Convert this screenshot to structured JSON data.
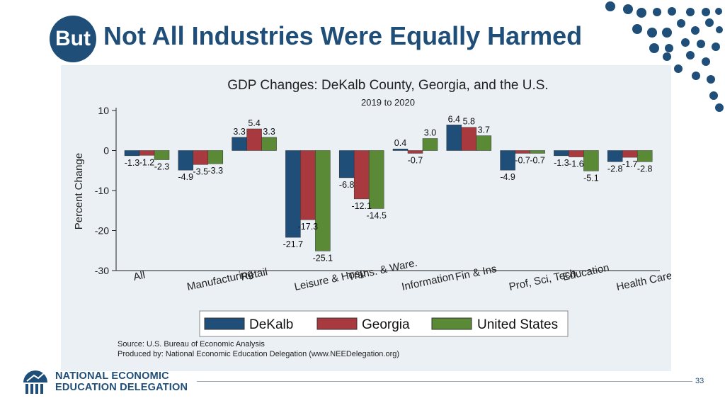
{
  "slide": {
    "badge": "But",
    "title": "Not All Industries Were Equally Harmed",
    "org_line1": "NATIONAL ECONOMIC",
    "org_line2": "EDUCATION DELEGATION",
    "page_number": "33"
  },
  "colors": {
    "brand": "#1f4e79",
    "panel_bg": "#eaf0f4",
    "dekalb": "#1f4e79",
    "georgia": "#a83a3f",
    "us": "#5a8a35"
  },
  "chart_data": {
    "type": "bar",
    "title": "GDP Changes: DeKalb County, Georgia, and the U.S.",
    "subtitle": "2019 to 2020",
    "xlabel": "",
    "ylabel": "Percent Change",
    "ylim": [
      -30,
      10
    ],
    "yticks": [
      10,
      0,
      -10,
      -20,
      -30
    ],
    "categories": [
      "All",
      "Manufacturing",
      "Retail",
      "Leisure & Hosp",
      "Trans. & Ware.",
      "Information",
      "Fin & Ins",
      "Prof, Sci, Tech",
      "Education",
      "Health Care"
    ],
    "series": [
      {
        "name": "DeKalb",
        "values": [
          -1.3,
          -4.9,
          3.3,
          -21.7,
          -6.8,
          0.4,
          6.4,
          -4.9,
          -1.3,
          -2.8
        ]
      },
      {
        "name": "Georgia",
        "values": [
          -1.2,
          -3.5,
          5.4,
          -17.3,
          -12.1,
          -0.7,
          5.8,
          -0.7,
          -1.6,
          -1.7
        ]
      },
      {
        "name": "United States",
        "values": [
          -2.3,
          -3.3,
          3.3,
          -25.1,
          -14.5,
          3.0,
          3.7,
          -0.7,
          -5.1,
          -2.8
        ]
      }
    ],
    "source": "Source: U.S. Bureau of Economic Analysis",
    "produced_by": "Produced by: National Economic Education Delegation (www.NEEDelegation.org)",
    "legend_position": "bottom",
    "grid": false
  }
}
